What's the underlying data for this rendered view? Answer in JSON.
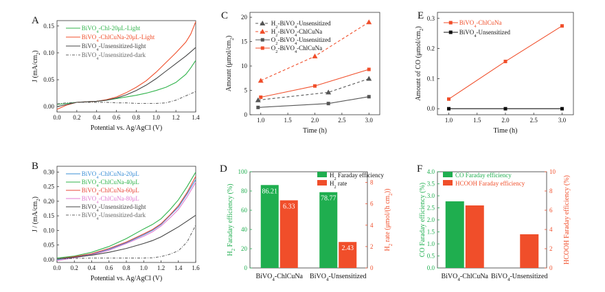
{
  "chart_data": [
    {
      "panel": "A",
      "type": "line",
      "xlabel": "Potential vs. Ag/AgCl (V)",
      "ylabel": "J (mA/cm2)",
      "xlim": [
        0,
        1.4
      ],
      "ylim": [
        -0.01,
        0.16
      ],
      "xticks": [
        "0.0",
        "0.2",
        "0.4",
        "0.6",
        "0.8",
        "1.0",
        "1.2",
        "1.4"
      ],
      "yticks": [
        "0.00",
        "0.05",
        "0.10",
        "0.15"
      ],
      "legend_position": "top-left",
      "series": [
        {
          "name": "BiVO4-Chl-20μL-Light",
          "color": "#2fb34a",
          "dash": "solid",
          "x": [
            0,
            0.1,
            0.2,
            0.3,
            0.4,
            0.5,
            0.6,
            0.7,
            0.8,
            0.9,
            1.0,
            1.1,
            1.2,
            1.3,
            1.35,
            1.4
          ],
          "y": [
            0.004,
            0.006,
            0.008,
            0.009,
            0.01,
            0.012,
            0.015,
            0.018,
            0.021,
            0.025,
            0.03,
            0.036,
            0.045,
            0.06,
            0.072,
            0.086
          ]
        },
        {
          "name": "BiVO4-ChlCuNa-20μL-Light",
          "color": "#f04e2a",
          "dash": "solid",
          "x": [
            0,
            0.1,
            0.2,
            0.3,
            0.4,
            0.5,
            0.6,
            0.7,
            0.8,
            0.9,
            1.0,
            1.1,
            1.2,
            1.3,
            1.35,
            1.4
          ],
          "y": [
            -0.005,
            0.003,
            0.008,
            0.009,
            0.01,
            0.013,
            0.018,
            0.026,
            0.036,
            0.048,
            0.064,
            0.082,
            0.1,
            0.12,
            0.135,
            0.158
          ]
        },
        {
          "name": "BiVO4-Unsensitized-light",
          "color": "#444444",
          "dash": "solid",
          "x": [
            0,
            0.1,
            0.2,
            0.3,
            0.4,
            0.5,
            0.6,
            0.7,
            0.8,
            0.9,
            1.0,
            1.1,
            1.2,
            1.3,
            1.35,
            1.4
          ],
          "y": [
            0.0,
            0.004,
            0.008,
            0.009,
            0.01,
            0.012,
            0.016,
            0.022,
            0.03,
            0.04,
            0.052,
            0.066,
            0.08,
            0.094,
            0.102,
            0.11
          ]
        },
        {
          "name": "BiVO4-Unsensitized-dark",
          "color": "#666666",
          "dash": "dashdot",
          "x": [
            0,
            0.1,
            0.2,
            0.3,
            0.4,
            0.5,
            0.6,
            0.7,
            0.8,
            0.9,
            1.0,
            1.1,
            1.2,
            1.3,
            1.35,
            1.4
          ],
          "y": [
            0.005,
            0.007,
            0.008,
            0.008,
            0.008,
            0.008,
            0.007,
            0.007,
            0.006,
            0.006,
            0.006,
            0.007,
            0.012,
            0.02,
            0.024,
            0.028
          ]
        }
      ]
    },
    {
      "panel": "B",
      "type": "line",
      "xlabel": "Potential vs. Ag/AgCl (V)",
      "ylabel": "J / (mA/cm2)",
      "xlim": [
        0,
        1.6
      ],
      "ylim": [
        -0.01,
        0.32
      ],
      "xticks": [
        "0.0",
        "0.2",
        "0.4",
        "0.6",
        "0.8",
        "1.0",
        "1.2",
        "1.4",
        "1.6"
      ],
      "yticks": [
        "0.00",
        "0.05",
        "0.10",
        "0.15",
        "0.20",
        "0.25",
        "0.30"
      ],
      "legend_position": "top-left",
      "series": [
        {
          "name": "BiVO4-ChlCuNa-20μL",
          "color": "#3a8fd6",
          "dash": "solid",
          "x": [
            0,
            0.2,
            0.4,
            0.6,
            0.8,
            1.0,
            1.1,
            1.2,
            1.3,
            1.4,
            1.5,
            1.6
          ],
          "y": [
            0.0,
            0.008,
            0.018,
            0.035,
            0.058,
            0.085,
            0.1,
            0.12,
            0.15,
            0.18,
            0.225,
            0.275
          ]
        },
        {
          "name": "BiVO4-ChlCuNa-40μL",
          "color": "#2fb34a",
          "dash": "solid",
          "x": [
            0,
            0.2,
            0.4,
            0.6,
            0.8,
            1.0,
            1.1,
            1.2,
            1.3,
            1.4,
            1.5,
            1.6
          ],
          "y": [
            0.005,
            0.012,
            0.025,
            0.045,
            0.072,
            0.105,
            0.12,
            0.14,
            0.17,
            0.205,
            0.25,
            0.3
          ]
        },
        {
          "name": "BiVO4-ChlCuNa-60μL",
          "color": "#e8473a",
          "dash": "solid",
          "x": [
            0,
            0.2,
            0.4,
            0.6,
            0.8,
            1.0,
            1.1,
            1.2,
            1.3,
            1.4,
            1.5,
            1.6
          ],
          "y": [
            0.002,
            0.01,
            0.02,
            0.038,
            0.06,
            0.088,
            0.103,
            0.123,
            0.152,
            0.185,
            0.23,
            0.285
          ]
        },
        {
          "name": "BiVO4-ChlCuNa-80μL",
          "color": "#e07ad0",
          "dash": "solid",
          "x": [
            0,
            0.2,
            0.4,
            0.6,
            0.8,
            1.0,
            1.1,
            1.2,
            1.3,
            1.4,
            1.5,
            1.6
          ],
          "y": [
            -0.004,
            0.006,
            0.016,
            0.032,
            0.055,
            0.08,
            0.095,
            0.115,
            0.142,
            0.172,
            0.215,
            0.265
          ]
        },
        {
          "name": "BiVO4-Unsensitized-light",
          "color": "#444444",
          "dash": "solid",
          "x": [
            0,
            0.2,
            0.4,
            0.6,
            0.8,
            1.0,
            1.1,
            1.2,
            1.3,
            1.4,
            1.5,
            1.6
          ],
          "y": [
            0.002,
            0.008,
            0.015,
            0.025,
            0.038,
            0.055,
            0.065,
            0.078,
            0.095,
            0.112,
            0.132,
            0.152
          ]
        },
        {
          "name": "BiVO4-Unsensitized-dark",
          "color": "#666666",
          "dash": "dashdot",
          "x": [
            0,
            0.2,
            0.4,
            0.6,
            0.8,
            1.0,
            1.1,
            1.2,
            1.3,
            1.4,
            1.5,
            1.6
          ],
          "y": [
            0.002,
            0.004,
            0.005,
            0.005,
            0.005,
            0.005,
            0.006,
            0.01,
            0.018,
            0.03,
            0.06,
            0.118
          ]
        }
      ]
    },
    {
      "panel": "C",
      "type": "line",
      "xlabel": "Time (h)",
      "ylabel": "Amount (μmol/cm2)",
      "xlim": [
        0.8,
        3.2
      ],
      "ylim": [
        0,
        21
      ],
      "xticks": [
        "1.0",
        "1.5",
        "2.0",
        "2.5",
        "3.0"
      ],
      "yticks": [
        "0",
        "5",
        "10",
        "15",
        "20"
      ],
      "legend_position": "top-left",
      "series": [
        {
          "name": "H2-BiVO4-Unsensitized",
          "color": "#555555",
          "dash": "dashed",
          "marker": "triangle",
          "x": [
            0.95,
            2.25,
            3.0
          ],
          "y": [
            3.0,
            4.6,
            7.4
          ]
        },
        {
          "name": "H2-BiVO4-ChlCuNa",
          "color": "#f04e2a",
          "dash": "dashed",
          "marker": "triangle",
          "x": [
            1.0,
            2.0,
            3.0
          ],
          "y": [
            7.0,
            12.0,
            19.0
          ]
        },
        {
          "name": "O2-BiVO4-Unsensitized",
          "color": "#555555",
          "dash": "solid",
          "marker": "square",
          "x": [
            0.95,
            2.25,
            3.0
          ],
          "y": [
            1.5,
            2.3,
            3.7
          ]
        },
        {
          "name": "O2-BiVO4-ChlCuNa",
          "color": "#f04e2a",
          "dash": "solid",
          "marker": "square",
          "x": [
            1.0,
            2.0,
            3.0
          ],
          "y": [
            3.6,
            5.9,
            9.3
          ]
        }
      ]
    },
    {
      "panel": "D",
      "type": "bar",
      "categories": [
        "BiVO4-ChlCuNa",
        "BiVO4-Unsensitized"
      ],
      "ylabel": "H2 Faraday efficiency (%)",
      "y2label": "H2 rate (μmol/(h cm2))",
      "ylim": [
        0,
        100
      ],
      "y2lim": [
        0,
        9
      ],
      "yticks": [
        "0",
        "20",
        "40",
        "60",
        "80",
        "100"
      ],
      "y2ticks": [
        "0",
        "2",
        "4",
        "6",
        "8"
      ],
      "legend_position": "top-right",
      "series": [
        {
          "name": "H2 Faraday efficiency",
          "axis": "left",
          "color": "#1fae4f",
          "values": [
            86.21,
            78.77
          ],
          "labels": [
            "86.21",
            "78.77"
          ]
        },
        {
          "name": "H2 rate",
          "axis": "right",
          "color": "#f04e2a",
          "values": [
            6.33,
            2.43
          ],
          "labels": [
            "6.33",
            "2.43"
          ]
        }
      ]
    },
    {
      "panel": "E",
      "type": "line",
      "xlabel": "Time (h)",
      "ylabel": "Amount of CO (μmol/cm2)",
      "xlim": [
        0.8,
        3.2
      ],
      "ylim": [
        -0.02,
        0.32
      ],
      "xticks": [
        "1.0",
        "1.5",
        "2.0",
        "2.5",
        "3.0"
      ],
      "yticks": [
        "0.0",
        "0.1",
        "0.2",
        "0.3"
      ],
      "legend_position": "top-left",
      "series": [
        {
          "name": "BiVO4-ChlCuNa",
          "color": "#f04e2a",
          "dash": "solid",
          "marker": "square",
          "x": [
            1.0,
            2.0,
            3.0
          ],
          "y": [
            0.032,
            0.157,
            0.275
          ]
        },
        {
          "name": "BiVO4-Unsensitized",
          "color": "#111111",
          "dash": "solid",
          "marker": "square",
          "x": [
            1.0,
            2.0,
            3.0
          ],
          "y": [
            0.0,
            0.0,
            0.0
          ]
        }
      ]
    },
    {
      "panel": "F",
      "type": "bar",
      "categories": [
        "BiVO4-ChlCuNa",
        "BiVO4-Unsensitized"
      ],
      "ylabel": "CO Faraday efficiency (%)",
      "y2label": "HCOOH Faraday efficiency (%)",
      "ylim": [
        0,
        4.0
      ],
      "y2lim": [
        0,
        10
      ],
      "yticks": [
        "0.0",
        "0.5",
        "1.0",
        "1.5",
        "2.0",
        "2.5",
        "3.0",
        "3.5",
        "4.0"
      ],
      "y2ticks": [
        "0",
        "2",
        "4",
        "6",
        "8",
        "10"
      ],
      "legend_position": "top-left",
      "series": [
        {
          "name": "CO Faraday efficiency",
          "axis": "left",
          "color": "#1fae4f",
          "values": [
            2.77,
            0
          ]
        },
        {
          "name": "HCOOH  Faraday efficiency",
          "axis": "right",
          "color": "#f04e2a",
          "values": [
            6.5,
            3.5
          ]
        }
      ]
    }
  ]
}
